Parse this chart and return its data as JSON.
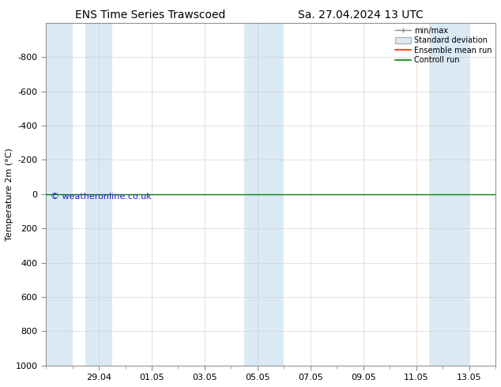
{
  "title_left": "ENS Time Series Trawscoed",
  "title_right": "Sa. 27.04.2024 13 UTC",
  "ylabel": "Temperature 2m (°C)",
  "ylim_bottom": 1000,
  "ylim_top": -1000,
  "yticks": [
    -800,
    -600,
    -400,
    -200,
    0,
    200,
    400,
    600,
    800,
    1000
  ],
  "x_tick_labels": [
    "29.04",
    "01.05",
    "03.05",
    "05.05",
    "07.05",
    "09.05",
    "11.05",
    "13.05"
  ],
  "x_tick_positions": [
    2,
    4,
    6,
    8,
    10,
    12,
    14,
    16
  ],
  "x_minor_ticks": [
    0,
    1,
    2,
    3,
    4,
    5,
    6,
    7,
    8,
    9,
    10,
    11,
    12,
    13,
    14,
    15,
    16,
    17
  ],
  "xlim": [
    0,
    17
  ],
  "shaded_bands": [
    [
      0,
      1.0
    ],
    [
      1.5,
      2.5
    ],
    [
      7.5,
      9.0
    ],
    [
      14.5,
      16.0
    ]
  ],
  "band_color": "#daeaf5",
  "green_line_y": 0,
  "green_line_color": "#008800",
  "red_line_color": "#ff2200",
  "watermark": "© weatheronline.co.uk",
  "watermark_color": "#2222cc",
  "legend_labels": [
    "min/max",
    "Standard deviation",
    "Ensemble mean run",
    "Controll run"
  ],
  "legend_line_colors": [
    "#888888",
    "#aaaaaa",
    "#ff2200",
    "#008800"
  ],
  "background_color": "#ffffff",
  "font_size": 8,
  "title_font_size": 10,
  "spine_color": "#888888",
  "tick_color": "#555555"
}
